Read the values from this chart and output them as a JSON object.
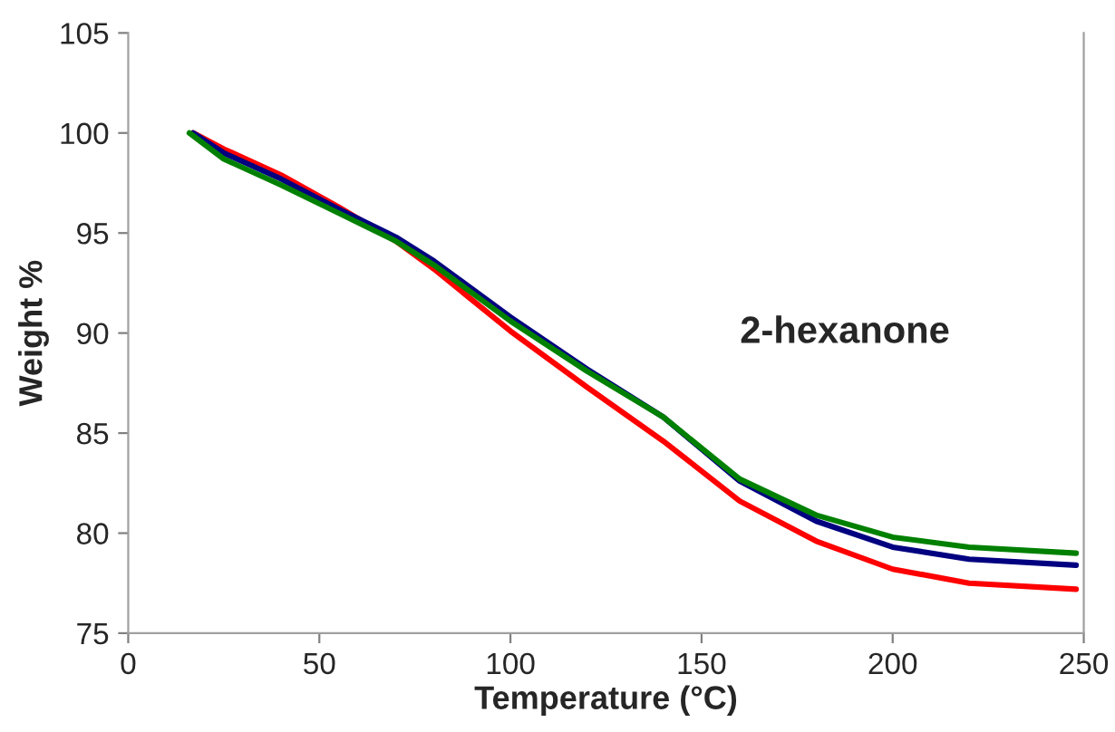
{
  "chart_data": {
    "type": "line",
    "xlabel": "Temperature (°C)",
    "ylabel": "Weight %",
    "annotations": [
      "2-hexanone"
    ],
    "xlim": [
      0,
      250
    ],
    "xticks": [
      0,
      50,
      100,
      150,
      200,
      250
    ],
    "ylim": [
      75,
      105
    ],
    "yticks": [
      75,
      80,
      85,
      90,
      95,
      100,
      105
    ],
    "grid": false,
    "legend": false,
    "marker": "none",
    "line_style": "solid",
    "series": [
      {
        "color": "#ff0000",
        "x": [
          17,
          25,
          40,
          55,
          70,
          80,
          100,
          120,
          140,
          160,
          180,
          200,
          220,
          248
        ],
        "values": [
          100,
          99.2,
          97.9,
          96.3,
          94.6,
          93.2,
          90.1,
          87.3,
          84.6,
          81.6,
          79.6,
          78.2,
          77.5,
          77.2
        ]
      },
      {
        "color": "#000080",
        "x": [
          17,
          25,
          40,
          55,
          70,
          80,
          100,
          120,
          140,
          160,
          180,
          200,
          220,
          248
        ],
        "values": [
          100,
          99,
          97.7,
          96.2,
          94.8,
          93.6,
          90.8,
          88.2,
          85.8,
          82.6,
          80.6,
          79.3,
          78.7,
          78.4
        ]
      },
      {
        "color": "#008000",
        "x": [
          16,
          25,
          40,
          55,
          70,
          80,
          100,
          120,
          140,
          160,
          180,
          200,
          220,
          248
        ],
        "values": [
          100,
          98.7,
          97.4,
          96,
          94.6,
          93.4,
          90.6,
          88.1,
          85.8,
          82.7,
          80.9,
          79.8,
          79.3,
          79.0
        ]
      }
    ]
  }
}
